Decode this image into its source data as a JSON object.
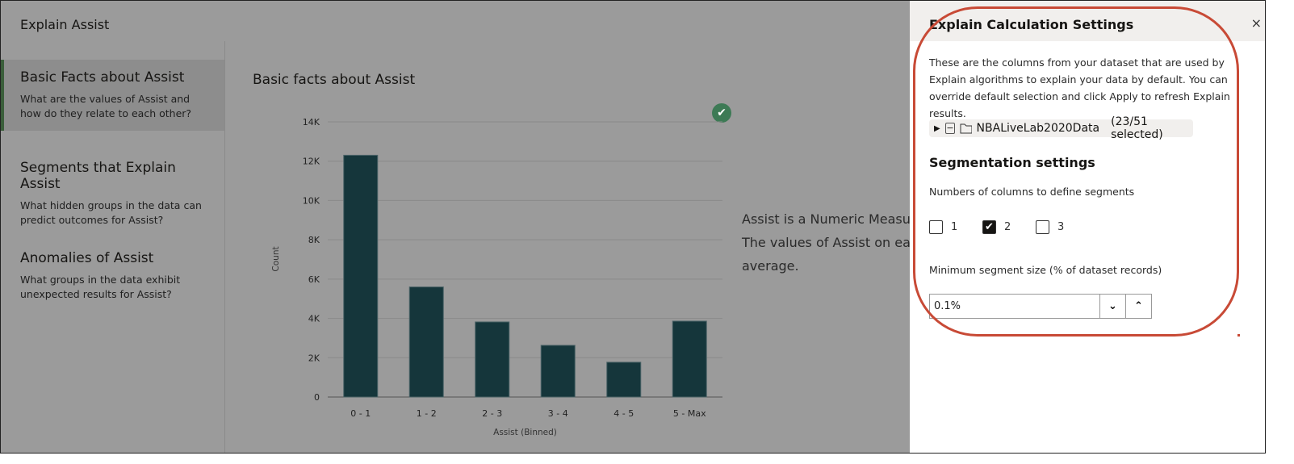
{
  "app": {
    "title": "Explain Assist"
  },
  "sidebar": {
    "items": [
      {
        "title": "Basic Facts about Assist",
        "desc": "What are the values of Assist and how do they relate to each other?"
      },
      {
        "title": "Segments that Explain Assist",
        "desc": "What hidden groups in the data can predict outcomes for Assist?"
      },
      {
        "title": "Anomalies of Assist",
        "desc": "What groups in the data exhibit unexpected results for Assist?"
      }
    ]
  },
  "main": {
    "title": "Basic facts about Assist",
    "desc_lines": [
      "Assist is a Numeric Measu",
      "The values of Assist on ea",
      "average."
    ],
    "status_icon": "check-circle-icon"
  },
  "chart_data": {
    "type": "bar",
    "categories": [
      "0 - 1",
      "1 - 2",
      "2 - 3",
      "3 - 4",
      "4 - 5",
      "5 - Max"
    ],
    "values": [
      12300,
      5600,
      3820,
      2630,
      1770,
      3860
    ],
    "xlabel": "Assist (Binned)",
    "ylabel": "Count",
    "ylim": [
      0,
      14000
    ],
    "yticks": [
      "0",
      "2K",
      "4K",
      "6K",
      "8K",
      "10K",
      "12K",
      "14K"
    ],
    "grid": true,
    "bar_color": "#15363b"
  },
  "panel": {
    "title": "Explain Calculation Settings",
    "close": "×",
    "intro": "These are the columns from your dataset that are used by Explain algorithms to explain your data by default. You can override default selection and click Apply to refresh Explain results.",
    "dataset": "NBALiveLab2020Data",
    "selected": "(23/51 selected)",
    "seg_title": "Segmentation settings",
    "ncols_label": "Numbers of columns to define segments",
    "options": [
      {
        "label": "1",
        "checked": false
      },
      {
        "label": "2",
        "checked": true
      },
      {
        "label": "3",
        "checked": false
      }
    ],
    "min_label": "Minimum segment size (% of dataset records)",
    "min_value": "0.1%"
  },
  "annotation_color": "#c84a36"
}
